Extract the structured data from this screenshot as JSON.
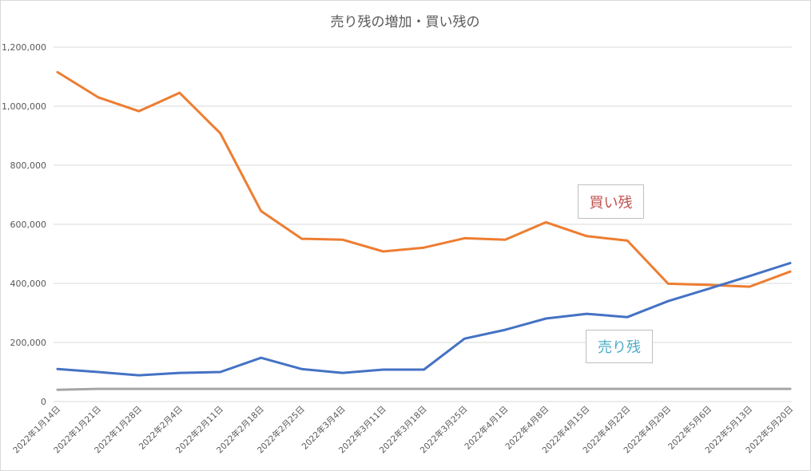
{
  "chart_data": {
    "type": "line",
    "title": "売り残の増加・買い残の",
    "xlabel": "",
    "ylabel": "",
    "categories": [
      "2022年1月14日",
      "2022年1月21日",
      "2022年1月28日",
      "2022年2月4日",
      "2022年2月11日",
      "2022年2月18日",
      "2022年2月25日",
      "2022年3月4日",
      "2022年3月11日",
      "2022年3月18日",
      "2022年3月25日",
      "2022年4月1日",
      "2022年4月8日",
      "2022年4月15日",
      "2022年4月22日",
      "2022年4月29日",
      "2022年5月6日",
      "2022年5月13日",
      "2022年5月20日"
    ],
    "ylim": [
      0,
      1200000
    ],
    "yticks": [
      0,
      200000,
      400000,
      600000,
      800000,
      1000000,
      1200000
    ],
    "ytick_labels": [
      "0",
      "200,000",
      "400,000",
      "600,000",
      "800,000",
      "1,000,000",
      "1,200,000"
    ],
    "grid": true,
    "series": [
      {
        "name": "買い残",
        "color": "#ED7D31",
        "values": [
          1115000,
          1030000,
          983000,
          1045000,
          908000,
          645000,
          551000,
          548000,
          508000,
          521000,
          553000,
          548000,
          607000,
          560000,
          545000,
          399000,
          395000,
          389000,
          440000
        ]
      },
      {
        "name": "売り残",
        "color": "#4472C4",
        "values": [
          110000,
          100000,
          89000,
          97000,
          100000,
          148000,
          110000,
          97000,
          108000,
          108000,
          213000,
          243000,
          281000,
          297000,
          286000,
          340000,
          382000,
          425000,
          469000
        ]
      },
      {
        "name": "",
        "color": "#A5A5A5",
        "values": [
          40000,
          43000,
          43000,
          43000,
          43000,
          43000,
          43000,
          43000,
          43000,
          43000,
          43000,
          43000,
          43000,
          43000,
          43000,
          43000,
          43000,
          43000,
          43000
        ]
      }
    ],
    "annotations": {
      "buy_label": {
        "text": "買い残",
        "color": "#C0504D"
      },
      "sell_label": {
        "text": "売り残",
        "color": "#4BACC6"
      }
    }
  }
}
